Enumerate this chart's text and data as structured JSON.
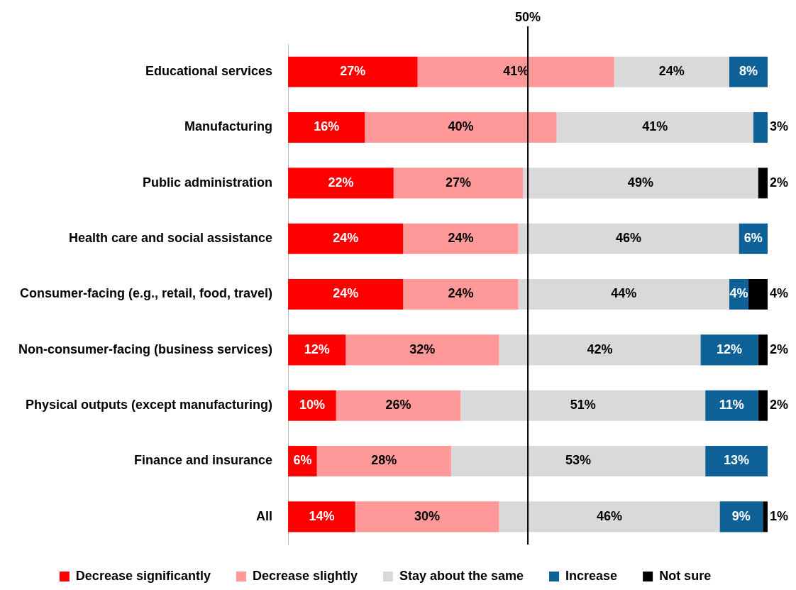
{
  "chart_data": {
    "type": "bar",
    "orientation": "horizontal",
    "stacked": true,
    "legend": "bottom",
    "grid": false,
    "tick_labels": "y",
    "categories": [
      "Educational services",
      "Manufacturing",
      "Public administration",
      "Health care and social assistance",
      "Consumer-facing (e.g., retail, food, travel)",
      "Non-consumer-facing (business services)",
      "Physical outputs (except manufacturing)",
      "Finance and insurance",
      "All"
    ],
    "series": [
      {
        "name": "Decrease significantly",
        "color": "#ff0000",
        "values": [
          27,
          16,
          22,
          24,
          24,
          12,
          10,
          6,
          14
        ],
        "value_labels": [
          "27%",
          "16%",
          "22%",
          "24%",
          "24%",
          "12%",
          "10%",
          "6%",
          "14%"
        ]
      },
      {
        "name": "Decrease slightly",
        "color": "#ff9999",
        "values": [
          41,
          40,
          27,
          24,
          24,
          32,
          26,
          28,
          30
        ],
        "value_labels": [
          "41%",
          "40%",
          "27%",
          "24%",
          "24%",
          "32%",
          "26%",
          "28%",
          "30%"
        ]
      },
      {
        "name": "Stay about the same",
        "color": "#d9d9d9",
        "values": [
          24,
          41,
          49,
          46,
          44,
          42,
          51,
          53,
          46
        ],
        "value_labels": [
          "24%",
          "41%",
          "49%",
          "46%",
          "44%",
          "42%",
          "51%",
          "53%",
          "46%"
        ]
      },
      {
        "name": "Increase",
        "color": "#0e6197",
        "values": [
          8,
          3,
          null,
          6,
          4,
          12,
          11,
          13,
          9
        ],
        "value_labels": [
          "8%",
          "3%",
          null,
          "6%",
          "4%",
          "12%",
          "11%",
          "13%",
          "9%"
        ]
      },
      {
        "name": "Not sure",
        "color": "#000000",
        "values": [
          null,
          null,
          2,
          null,
          4,
          2,
          2,
          null,
          1
        ],
        "value_labels": [
          null,
          null,
          "2%",
          null,
          "4%",
          "2%",
          "2%",
          null,
          "1%"
        ]
      }
    ],
    "ref_lines": [
      {
        "axis": "x",
        "value": 50,
        "label": "50%"
      }
    ]
  }
}
